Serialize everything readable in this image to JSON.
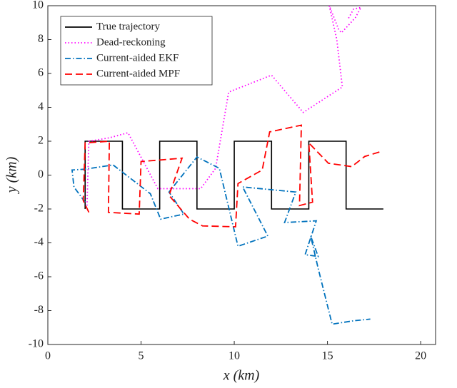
{
  "chart_data": {
    "type": "line",
    "xlabel": "x (km)",
    "ylabel": "y (km)",
    "xlim": [
      0,
      20.8
    ],
    "ylim": [
      -10,
      10
    ],
    "xticks": [
      0,
      5,
      10,
      15,
      20
    ],
    "yticks": [
      -10,
      -8,
      -6,
      -4,
      -2,
      0,
      2,
      4,
      6,
      8,
      10
    ],
    "legend": "upper left",
    "series": [
      {
        "name": "True trajectory",
        "color": "#000000",
        "style": "solid",
        "x": [
          2,
          2,
          4,
          4,
          6,
          6,
          8,
          8,
          10,
          10,
          12,
          12,
          14,
          14,
          16,
          16,
          18
        ],
        "values": [
          -2,
          2,
          2,
          -2,
          -2,
          2,
          2,
          -2,
          -2,
          2,
          2,
          -2,
          -2,
          2,
          2,
          -2,
          -2
        ]
      },
      {
        "name": "Dead-reckoning",
        "color": "#ff00ff",
        "style": "dotted",
        "x": [
          2.1,
          2.2,
          3.3,
          4.3,
          5.9,
          8.2,
          9.0,
          9.7,
          12.0,
          13.7,
          15.8,
          15.5,
          15.1,
          15.6,
          15.75,
          16.5,
          16.8,
          16.4,
          16.1
        ],
        "values": [
          -1.8,
          2.0,
          2.2,
          2.5,
          -0.8,
          -0.8,
          0.4,
          4.9,
          5.9,
          3.7,
          5.2,
          8.0,
          10,
          8.6,
          8.4,
          9.3,
          9.9,
          9.8,
          9.2
        ]
      },
      {
        "name": "Current-aided EKF",
        "color": "#0072bd",
        "style": "dashdot",
        "x": [
          2.0,
          1.4,
          1.3,
          2.0,
          3.5,
          5.5,
          6.05,
          7.3,
          6.5,
          8.0,
          9.2,
          10.2,
          11.8,
          10.45,
          13.3,
          12.7,
          14.4,
          13.8,
          14.5,
          14.1,
          14.5,
          15.25,
          16.4,
          17.3
        ],
        "values": [
          -1.6,
          -0.7,
          0.3,
          0.35,
          0.6,
          -1.1,
          -2.6,
          -2.3,
          -1.0,
          1.07,
          0.4,
          -4.2,
          -3.6,
          -0.7,
          -1.0,
          -2.8,
          -2.7,
          -4.7,
          -4.8,
          -3.6,
          -5.5,
          -8.8,
          -8.6,
          -8.5
        ]
      },
      {
        "name": "Current-aided MPF",
        "color": "#ff0000",
        "style": "dashed",
        "x": [
          2.2,
          1.9,
          2.0,
          3.3,
          3.25,
          4.9,
          5.0,
          7.2,
          6.5,
          7.6,
          8.3,
          10.07,
          10.2,
          11.5,
          11.9,
          13.6,
          13.5,
          14.2,
          14.0,
          15.05,
          16.3,
          17.0,
          17.9
        ],
        "values": [
          -2.2,
          -1.5,
          1.9,
          2.0,
          -2.2,
          -2.3,
          0.8,
          1.0,
          -1.2,
          -2.6,
          -3.0,
          -3.05,
          -0.5,
          0.3,
          2.55,
          2.95,
          -1.8,
          -1.6,
          1.9,
          0.7,
          0.5,
          1.1,
          1.4
        ]
      }
    ]
  }
}
